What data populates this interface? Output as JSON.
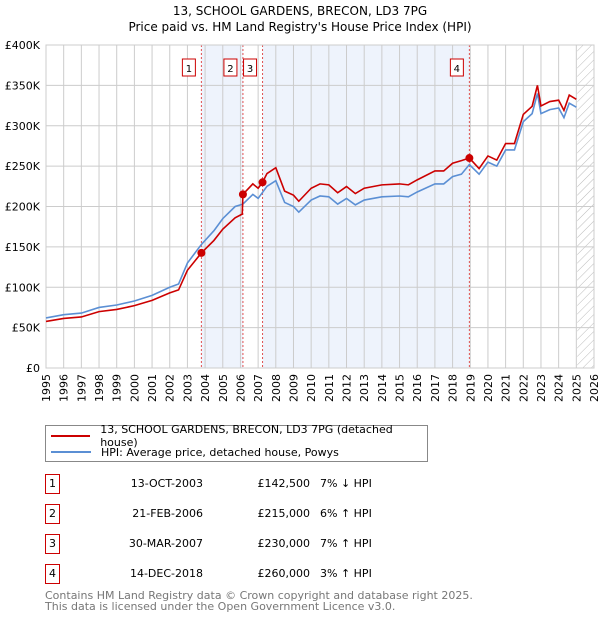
{
  "chart_data": {
    "type": "line",
    "title": "13, SCHOOL GARDENS, BRECON, LD3 7PG",
    "subtitle": "Price paid vs. HM Land Registry's House Price Index (HPI)",
    "xlim": [
      1995,
      2026
    ],
    "ylim": [
      0,
      400000
    ],
    "x_ticks": [
      "1995",
      "1996",
      "1997",
      "1998",
      "1999",
      "2000",
      "2001",
      "2002",
      "2003",
      "2004",
      "2005",
      "2006",
      "2007",
      "2008",
      "2009",
      "2010",
      "2011",
      "2012",
      "2013",
      "2014",
      "2015",
      "2016",
      "2017",
      "2018",
      "2019",
      "2020",
      "2021",
      "2022",
      "2023",
      "2024",
      "2025",
      "2026"
    ],
    "y_ticks": [
      {
        "v": 0,
        "label": "£0"
      },
      {
        "v": 50000,
        "label": "£50K"
      },
      {
        "v": 100000,
        "label": "£100K"
      },
      {
        "v": 150000,
        "label": "£150K"
      },
      {
        "v": 200000,
        "label": "£200K"
      },
      {
        "v": 250000,
        "label": "£250K"
      },
      {
        "v": 300000,
        "label": "£300K"
      },
      {
        "v": 350000,
        "label": "£350K"
      },
      {
        "v": 400000,
        "label": "£400K"
      }
    ],
    "grid": true,
    "shaded_ranges": [
      [
        2003.79,
        2006.14
      ],
      [
        2007.25,
        2018.95
      ]
    ],
    "future_hatch_from": 2025.05,
    "series": [
      {
        "name": "13, SCHOOL GARDENS, BRECON, LD3 7PG (detached house)",
        "color": "#cc0000",
        "x": [
          1995,
          1996,
          1997,
          1998,
          1999,
          2000,
          2001,
          2002,
          2002.5,
          2003,
          2003.79,
          2004.5,
          2005,
          2005.7,
          2006.1,
          2006.14,
          2006.7,
          2007,
          2007.25,
          2007.5,
          2008,
          2008.5,
          2009,
          2009.3,
          2010,
          2010.5,
          2011,
          2011.5,
          2012,
          2012.5,
          2013,
          2014,
          2015,
          2015.5,
          2016,
          2017,
          2017.5,
          2018,
          2018.5,
          2018.95,
          2019.5,
          2020,
          2020.5,
          2021,
          2021.5,
          2022,
          2022.5,
          2022.8,
          2023,
          2023.5,
          2024,
          2024.3,
          2024.6,
          2025
        ],
        "y": [
          57700,
          61400,
          63200,
          69800,
          72500,
          77200,
          83700,
          93000,
          96700,
          121000,
          142500,
          158000,
          172000,
          186000,
          190600,
          215000,
          228000,
          222600,
          230000,
          240800,
          248000,
          219000,
          214000,
          206500,
          222600,
          228000,
          226800,
          217000,
          224700,
          216000,
          222600,
          226800,
          228000,
          226800,
          233000,
          244000,
          244000,
          253600,
          256800,
          260000,
          247000,
          262600,
          257500,
          278000,
          278000,
          314000,
          324000,
          350000,
          324500,
          330000,
          331700,
          319000,
          338000,
          332700
        ]
      },
      {
        "name": "HPI: Average price, detached house, Powys",
        "color": "#5b8fd4",
        "x": [
          1995,
          1996,
          1997,
          1998,
          1999,
          2000,
          2001,
          2002,
          2002.5,
          2003,
          2003.79,
          2004.5,
          2005,
          2005.7,
          2006.14,
          2006.7,
          2007,
          2007.5,
          2008,
          2008.5,
          2009,
          2009.3,
          2010,
          2010.5,
          2011,
          2011.5,
          2012,
          2012.5,
          2013,
          2014,
          2015,
          2015.5,
          2016,
          2017,
          2017.5,
          2018,
          2018.5,
          2018.95,
          2019.5,
          2020,
          2020.5,
          2021,
          2021.5,
          2022,
          2022.5,
          2022.8,
          2023,
          2023.5,
          2024,
          2024.3,
          2024.6,
          2025
        ],
        "y": [
          62000,
          66000,
          68000,
          75000,
          78000,
          83000,
          90000,
          100000,
          104000,
          130000,
          153000,
          170000,
          185000,
          200000,
          203000,
          215000,
          210000,
          225000,
          232000,
          205000,
          200000,
          193000,
          208000,
          213000,
          212000,
          203000,
          210000,
          202000,
          208000,
          212000,
          213000,
          212000,
          218000,
          228000,
          228000,
          237000,
          240000,
          252000,
          240000,
          255000,
          250000,
          270000,
          270000,
          305000,
          315000,
          340000,
          315000,
          320000,
          322000,
          310000,
          328000,
          323000
        ]
      }
    ],
    "sales": [
      {
        "label": "1",
        "x": 2003.79,
        "y": 142500
      },
      {
        "label": "2",
        "x": 2006.14,
        "y": 215000
      },
      {
        "label": "3",
        "x": 2007.25,
        "y": 230000
      },
      {
        "label": "4",
        "x": 2018.95,
        "y": 260000
      }
    ]
  },
  "legend": {
    "property": "13, SCHOOL GARDENS, BRECON, LD3 7PG (detached house)",
    "hpi": "HPI: Average price, detached house, Powys"
  },
  "transactions": [
    {
      "num": "1",
      "date": "13-OCT-2003",
      "price": "£142,500",
      "hpi": "7% ↓ HPI"
    },
    {
      "num": "2",
      "date": "21-FEB-2006",
      "price": "£215,000",
      "hpi": "6% ↑ HPI"
    },
    {
      "num": "3",
      "date": "30-MAR-2007",
      "price": "£230,000",
      "hpi": "7% ↑ HPI"
    },
    {
      "num": "4",
      "date": "14-DEC-2018",
      "price": "£260,000",
      "hpi": "3% ↑ HPI"
    }
  ],
  "footer": {
    "line1": "Contains HM Land Registry data © Crown copyright and database right 2025.",
    "line2": "This data is licensed under the Open Government Licence v3.0."
  }
}
